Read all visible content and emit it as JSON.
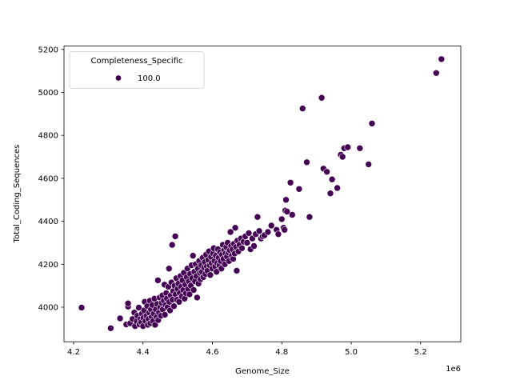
{
  "chart_data": {
    "type": "scatter",
    "title": "",
    "xlabel": "Genome_Size",
    "ylabel": "Total_Coding_Sequences",
    "x_offset_label": "1e6",
    "xlim": [
      4.17,
      5.31
    ],
    "ylim": [
      3850,
      5230
    ],
    "x_ticks": [
      4.2,
      4.4,
      4.6,
      4.8,
      5.0,
      5.2
    ],
    "x_tick_labels": [
      "4.2",
      "4.4",
      "4.6",
      "4.8",
      "5.0",
      "5.2"
    ],
    "y_ticks": [
      4000,
      4200,
      4400,
      4600,
      4800,
      5000,
      5200
    ],
    "y_tick_labels": [
      "4000",
      "4200",
      "4400",
      "4600",
      "4800",
      "5000",
      "5200"
    ],
    "grid": false,
    "legend": {
      "position": "upper left",
      "title": "Completeness_Specific",
      "entries": [
        {
          "label": "100.0",
          "color": "#440154"
        }
      ]
    },
    "series": [
      {
        "name": "100.0",
        "color": "#440154",
        "points": [
          [
            4.223,
            3998
          ],
          [
            4.307,
            3902
          ],
          [
            4.334,
            3948
          ],
          [
            4.352,
            3920
          ],
          [
            4.357,
            4003
          ],
          [
            4.357,
            4018
          ],
          [
            4.363,
            3925
          ],
          [
            4.37,
            3945
          ],
          [
            4.375,
            3975
          ],
          [
            4.377,
            3912
          ],
          [
            4.382,
            3935
          ],
          [
            4.384,
            3960
          ],
          [
            4.388,
            3998
          ],
          [
            4.39,
            3920
          ],
          [
            4.392,
            3945
          ],
          [
            4.395,
            3930
          ],
          [
            4.397,
            3970
          ],
          [
            4.4,
            3912
          ],
          [
            4.401,
            3950
          ],
          [
            4.403,
            3985
          ],
          [
            4.405,
            4025
          ],
          [
            4.407,
            3935
          ],
          [
            4.41,
            3960
          ],
          [
            4.412,
            4005
          ],
          [
            4.414,
            3918
          ],
          [
            4.416,
            3945
          ],
          [
            4.418,
            3975
          ],
          [
            4.42,
            4030
          ],
          [
            4.421,
            3925
          ],
          [
            4.423,
            3990
          ],
          [
            4.425,
            3955
          ],
          [
            4.427,
            4010
          ],
          [
            4.429,
            3935
          ],
          [
            4.431,
            3970
          ],
          [
            4.433,
            4040
          ],
          [
            4.435,
            3918
          ],
          [
            4.437,
            3990
          ],
          [
            4.439,
            3955
          ],
          [
            4.441,
            4015
          ],
          [
            4.443,
            4125
          ],
          [
            4.444,
            3940
          ],
          [
            4.446,
            3975
          ],
          [
            4.448,
            4045
          ],
          [
            4.45,
            4000
          ],
          [
            4.452,
            3960
          ],
          [
            4.454,
            4020
          ],
          [
            4.456,
            4055
          ],
          [
            4.457,
            3990
          ],
          [
            4.46,
            4030
          ],
          [
            4.462,
            4105
          ],
          [
            4.463,
            3965
          ],
          [
            4.465,
            4010
          ],
          [
            4.467,
            4065
          ],
          [
            4.469,
            4040
          ],
          [
            4.471,
            4000
          ],
          [
            4.473,
            4095
          ],
          [
            4.475,
            4180
          ],
          [
            4.476,
            4025
          ],
          [
            4.478,
            3985
          ],
          [
            4.48,
            4055
          ],
          [
            4.482,
            4115
          ],
          [
            4.484,
            4290
          ],
          [
            4.485,
            4035
          ],
          [
            4.487,
            4075
          ],
          [
            4.489,
            4005
          ],
          [
            4.491,
            4100
          ],
          [
            4.493,
            4330
          ],
          [
            4.494,
            4060
          ],
          [
            4.496,
            4135
          ],
          [
            4.498,
            4035
          ],
          [
            4.5,
            4085
          ],
          [
            4.502,
            4110
          ],
          [
            4.504,
            4025
          ],
          [
            4.506,
            4065
          ],
          [
            4.508,
            4145
          ],
          [
            4.51,
            4095
          ],
          [
            4.512,
            4050
          ],
          [
            4.514,
            4125
          ],
          [
            4.516,
            4080
          ],
          [
            4.518,
            4160
          ],
          [
            4.52,
            4040
          ],
          [
            4.522,
            4105
          ],
          [
            4.524,
            4065
          ],
          [
            4.526,
            4140
          ],
          [
            4.528,
            4180
          ],
          [
            4.53,
            4085
          ],
          [
            4.532,
            4120
          ],
          [
            4.534,
            4060
          ],
          [
            4.536,
            4155
          ],
          [
            4.538,
            4100
          ],
          [
            4.54,
            4195
          ],
          [
            4.542,
            4135
          ],
          [
            4.544,
            4240
          ],
          [
            4.546,
            4080
          ],
          [
            4.548,
            4165
          ],
          [
            4.55,
            4120
          ],
          [
            4.552,
            4200
          ],
          [
            4.554,
            4145
          ],
          [
            4.556,
            4045
          ],
          [
            4.558,
            4180
          ],
          [
            4.56,
            4110
          ],
          [
            4.562,
            4215
          ],
          [
            4.564,
            4160
          ],
          [
            4.566,
            4130
          ],
          [
            4.568,
            4195
          ],
          [
            4.57,
            4165
          ],
          [
            4.572,
            4230
          ],
          [
            4.574,
            4140
          ],
          [
            4.576,
            4185
          ],
          [
            4.578,
            4210
          ],
          [
            4.58,
            4155
          ],
          [
            4.582,
            4245
          ],
          [
            4.584,
            4190
          ],
          [
            4.586,
            4170
          ],
          [
            4.588,
            4220
          ],
          [
            4.59,
            4260
          ],
          [
            4.592,
            4195
          ],
          [
            4.594,
            4150
          ],
          [
            4.596,
            4235
          ],
          [
            4.598,
            4205
          ],
          [
            4.6,
            4180
          ],
          [
            4.602,
            4250
          ],
          [
            4.604,
            4275
          ],
          [
            4.606,
            4215
          ],
          [
            4.608,
            4190
          ],
          [
            4.61,
            4240
          ],
          [
            4.612,
            4165
          ],
          [
            4.614,
            4205
          ],
          [
            4.616,
            4270
          ],
          [
            4.618,
            4230
          ],
          [
            4.62,
            4195
          ],
          [
            4.622,
            4255
          ],
          [
            4.624,
            4215
          ],
          [
            4.626,
            4180
          ],
          [
            4.628,
            4245
          ],
          [
            4.63,
            4290
          ],
          [
            4.632,
            4225
          ],
          [
            4.634,
            4265
          ],
          [
            4.636,
            4200
          ],
          [
            4.638,
            4250
          ],
          [
            4.64,
            4280
          ],
          [
            4.642,
            4235
          ],
          [
            4.644,
            4300
          ],
          [
            4.646,
            4255
          ],
          [
            4.648,
            4215
          ],
          [
            4.65,
            4265
          ],
          [
            4.652,
            4350
          ],
          [
            4.654,
            4285
          ],
          [
            4.656,
            4240
          ],
          [
            4.658,
            4270
          ],
          [
            4.66,
            4225
          ],
          [
            4.662,
            4295
          ],
          [
            4.664,
            4250
          ],
          [
            4.666,
            4370
          ],
          [
            4.668,
            4280
          ],
          [
            4.67,
            4170
          ],
          [
            4.672,
            4310
          ],
          [
            4.675,
            4260
          ],
          [
            4.678,
            4290
          ],
          [
            4.682,
            4320
          ],
          [
            4.685,
            4275
          ],
          [
            4.69,
            4305
          ],
          [
            4.695,
            4330
          ],
          [
            4.7,
            4300
          ],
          [
            4.705,
            4345
          ],
          [
            4.71,
            4270
          ],
          [
            4.715,
            4320
          ],
          [
            4.72,
            4285
          ],
          [
            4.725,
            4340
          ],
          [
            4.73,
            4420
          ],
          [
            4.735,
            4355
          ],
          [
            4.74,
            4320
          ],
          [
            4.745,
            4330
          ],
          [
            4.75,
            4335
          ],
          [
            4.76,
            4350
          ],
          [
            4.77,
            4380
          ],
          [
            4.785,
            4360
          ],
          [
            4.79,
            4340
          ],
          [
            4.8,
            4410
          ],
          [
            4.805,
            4370
          ],
          [
            4.808,
            4360
          ],
          [
            4.81,
            4450
          ],
          [
            4.812,
            4500
          ],
          [
            4.815,
            4445
          ],
          [
            4.825,
            4580
          ],
          [
            4.83,
            4430
          ],
          [
            4.85,
            4550
          ],
          [
            4.86,
            4925
          ],
          [
            4.872,
            4675
          ],
          [
            4.88,
            4420
          ],
          [
            4.915,
            4975
          ],
          [
            4.92,
            4645
          ],
          [
            4.93,
            4630
          ],
          [
            4.94,
            4530
          ],
          [
            4.945,
            4595
          ],
          [
            4.96,
            4555
          ],
          [
            4.97,
            4710
          ],
          [
            4.975,
            4700
          ],
          [
            4.98,
            4740
          ],
          [
            4.99,
            4745
          ],
          [
            5.025,
            4740
          ],
          [
            5.05,
            4665
          ],
          [
            5.06,
            4855
          ],
          [
            5.245,
            5090
          ],
          [
            5.26,
            5155
          ]
        ]
      }
    ]
  }
}
